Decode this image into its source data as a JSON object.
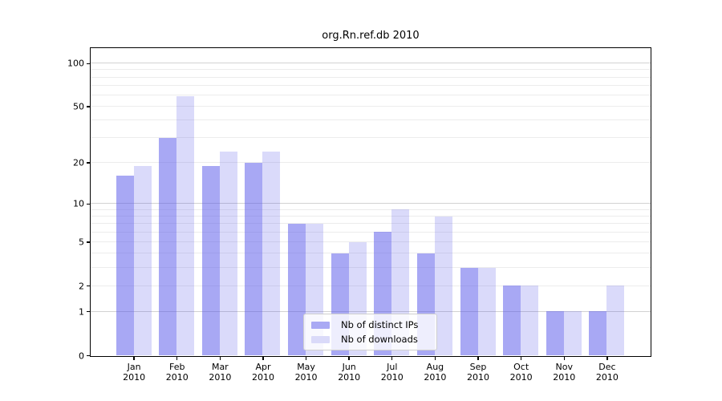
{
  "chart_data": {
    "type": "bar",
    "title": "org.Rn.ref.db 2010",
    "categories": [
      "Jan",
      "Feb",
      "Mar",
      "Apr",
      "May",
      "Jun",
      "Jul",
      "Aug",
      "Sep",
      "Oct",
      "Nov",
      "Dec"
    ],
    "category_year": "2010",
    "series": [
      {
        "name": "Nb of distinct IPs",
        "color": "#a9a9f4",
        "fill": "rgba(81,81,233,0.5)",
        "values": [
          16,
          30,
          19,
          20,
          7,
          4,
          6,
          4,
          3,
          2,
          1,
          1
        ]
      },
      {
        "name": "Nb of downloads",
        "color": "#dadaf9",
        "fill": "rgba(81,81,233,0.21)",
        "values": [
          19,
          59,
          24,
          24,
          7,
          5,
          9,
          8,
          3,
          2,
          1,
          2
        ]
      }
    ],
    "yscale": "log1p",
    "ylim": [
      0,
      127
    ],
    "yticks": [
      0,
      1,
      2,
      5,
      10,
      20,
      50,
      100
    ],
    "grid_major": [
      1,
      10,
      100
    ],
    "grid_minor": [
      2,
      3,
      4,
      5,
      6,
      7,
      8,
      9,
      20,
      30,
      40,
      50,
      60,
      70,
      80,
      90
    ],
    "grid_major_color": "#d2d2d2",
    "grid_minor_color": "#ececec",
    "axis_color": "#000000",
    "legend_position": "lower-center-inside",
    "xlabel": "",
    "ylabel": ""
  }
}
